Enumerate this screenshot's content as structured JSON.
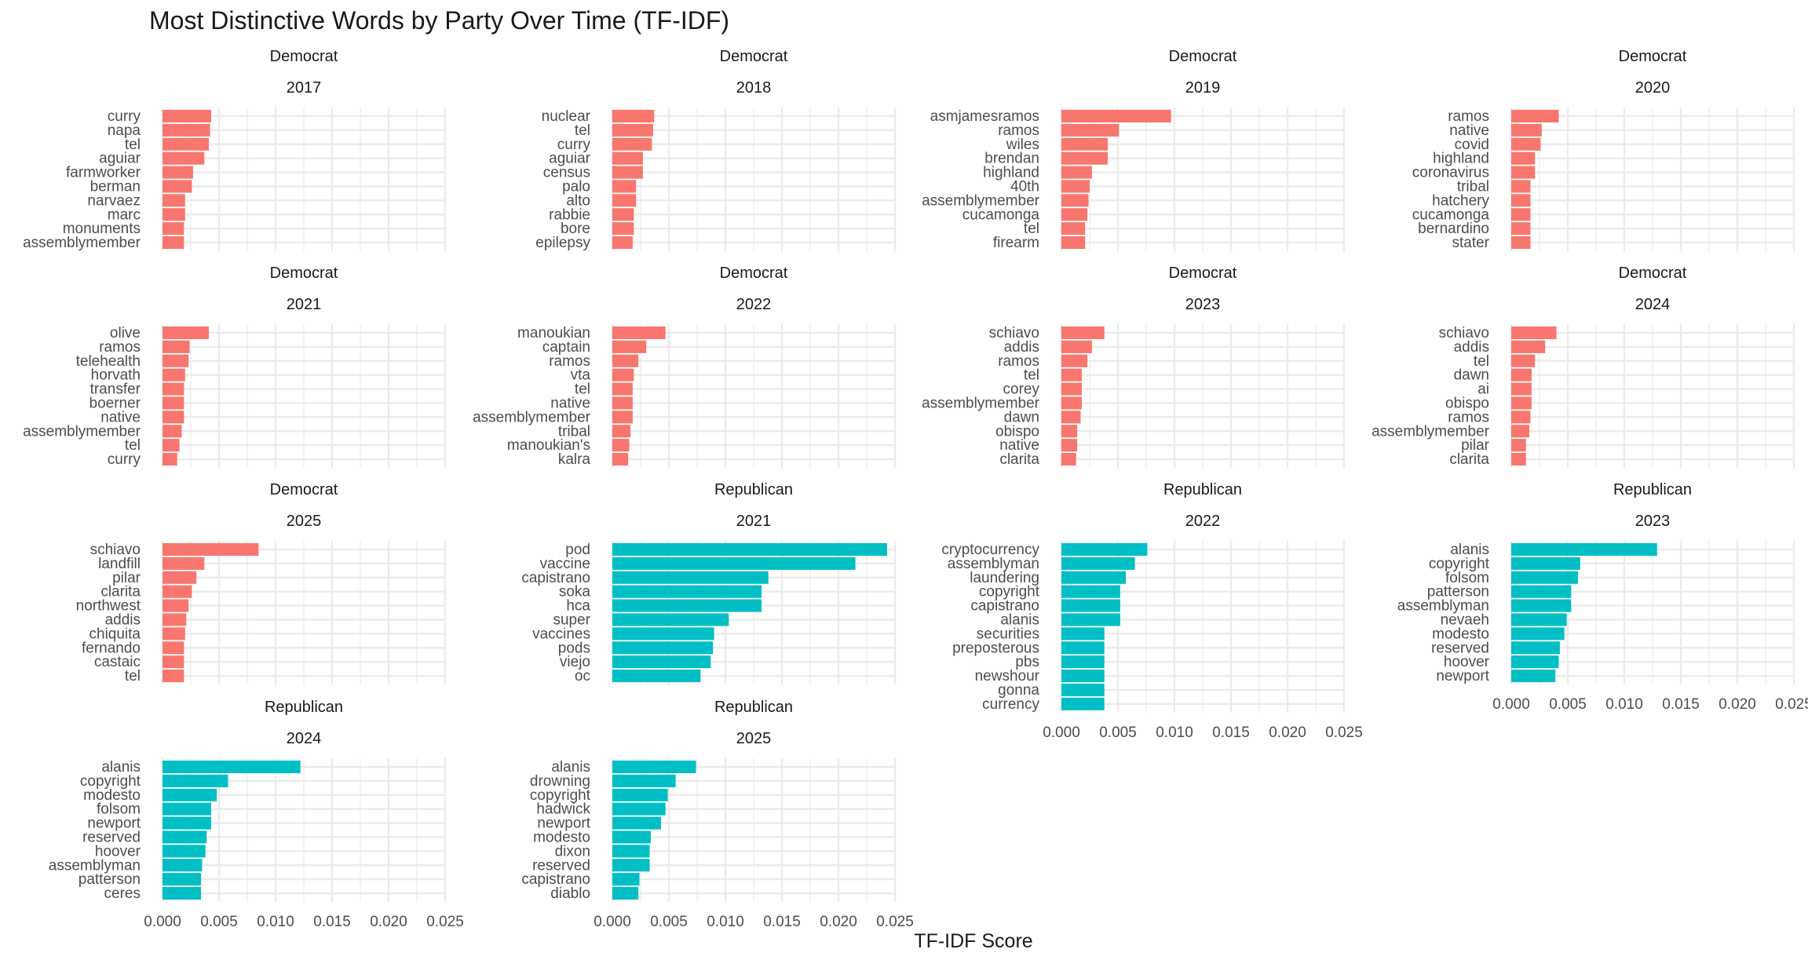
{
  "chart_data": {
    "type": "bar",
    "orientation": "horizontal",
    "title": "Most Distinctive Words by Party Over Time (TF-IDF)",
    "xlabel": "TF-IDF Score",
    "ylabel": "",
    "xlim": [
      0,
      0.025
    ],
    "x_ticks": [
      "0.000",
      "0.005",
      "0.010",
      "0.015",
      "0.020",
      "0.025"
    ],
    "grid": true,
    "colors": {
      "Democrat": "#F8766D",
      "Republican": "#00BFC4"
    },
    "panels": [
      {
        "party": "Democrat",
        "year": "2017",
        "words": [
          "curry",
          "napa",
          "tel",
          "aguiar",
          "farmworker",
          "berman",
          "narvaez",
          "marc",
          "monuments",
          "assemblymember"
        ],
        "values": [
          0.0043,
          0.0042,
          0.0041,
          0.0037,
          0.0027,
          0.0026,
          0.002,
          0.002,
          0.0019,
          0.0019
        ]
      },
      {
        "party": "Democrat",
        "year": "2018",
        "words": [
          "nuclear",
          "tel",
          "curry",
          "aguiar",
          "census",
          "palo",
          "alto",
          "rabbie",
          "bore",
          "epilepsy"
        ],
        "values": [
          0.0037,
          0.0036,
          0.0035,
          0.0027,
          0.0027,
          0.0021,
          0.0021,
          0.0019,
          0.0019,
          0.0018
        ]
      },
      {
        "party": "Democrat",
        "year": "2019",
        "words": [
          "asmjamesramos",
          "ramos",
          "wiles",
          "brendan",
          "highland",
          "40th",
          "assemblymember",
          "cucamonga",
          "tel",
          "firearm"
        ],
        "values": [
          0.0097,
          0.0051,
          0.0041,
          0.0041,
          0.0027,
          0.0025,
          0.0024,
          0.0023,
          0.0021,
          0.0021
        ]
      },
      {
        "party": "Democrat",
        "year": "2020",
        "words": [
          "ramos",
          "native",
          "covid",
          "highland",
          "coronavirus",
          "tribal",
          "hatchery",
          "cucamonga",
          "bernardino",
          "stater"
        ],
        "values": [
          0.0042,
          0.0027,
          0.0026,
          0.0021,
          0.0021,
          0.0017,
          0.0017,
          0.0017,
          0.0017,
          0.0017
        ]
      },
      {
        "party": "Democrat",
        "year": "2021",
        "words": [
          "olive",
          "ramos",
          "telehealth",
          "horvath",
          "transfer",
          "boerner",
          "native",
          "assemblymember",
          "tel",
          "curry"
        ],
        "values": [
          0.0041,
          0.0024,
          0.0023,
          0.002,
          0.0019,
          0.0019,
          0.0019,
          0.0017,
          0.0015,
          0.0013
        ]
      },
      {
        "party": "Democrat",
        "year": "2022",
        "words": [
          "manoukian",
          "captain",
          "ramos",
          "vta",
          "tel",
          "native",
          "assemblymember",
          "tribal",
          "manoukian's",
          "kalra"
        ],
        "values": [
          0.0047,
          0.003,
          0.0023,
          0.0019,
          0.0018,
          0.0018,
          0.0018,
          0.0016,
          0.0015,
          0.0014
        ]
      },
      {
        "party": "Democrat",
        "year": "2023",
        "words": [
          "schiavo",
          "addis",
          "ramos",
          "tel",
          "corey",
          "assemblymember",
          "dawn",
          "obispo",
          "native",
          "clarita"
        ],
        "values": [
          0.0038,
          0.0027,
          0.0023,
          0.0018,
          0.0018,
          0.0018,
          0.0017,
          0.0014,
          0.0014,
          0.0013
        ]
      },
      {
        "party": "Democrat",
        "year": "2024",
        "words": [
          "schiavo",
          "addis",
          "tel",
          "dawn",
          "ai",
          "obispo",
          "ramos",
          "assemblymember",
          "pilar",
          "clarita"
        ],
        "values": [
          0.004,
          0.003,
          0.0021,
          0.0018,
          0.0018,
          0.0018,
          0.0017,
          0.0016,
          0.0013,
          0.0013
        ]
      },
      {
        "party": "Democrat",
        "year": "2025",
        "words": [
          "schiavo",
          "landfill",
          "pilar",
          "clarita",
          "northwest",
          "addis",
          "chiquita",
          "fernando",
          "castaic",
          "tel"
        ],
        "values": [
          0.0085,
          0.0037,
          0.003,
          0.0026,
          0.0023,
          0.0021,
          0.002,
          0.0019,
          0.0019,
          0.0019
        ]
      },
      {
        "party": "Republican",
        "year": "2021",
        "words": [
          "pod",
          "vaccine",
          "capistrano",
          "soka",
          "hca",
          "super",
          "vaccines",
          "pods",
          "viejo",
          "oc"
        ],
        "values": [
          0.0243,
          0.0215,
          0.0138,
          0.0132,
          0.0132,
          0.0103,
          0.009,
          0.0089,
          0.0087,
          0.0078
        ]
      },
      {
        "party": "Republican",
        "year": "2022",
        "words": [
          "cryptocurrency",
          "assemblyman",
          "laundering",
          "copyright",
          "capistrano",
          "alanis",
          "securities",
          "preposterous",
          "pbs",
          "newshour",
          "gonna",
          "currency"
        ],
        "values": [
          0.0076,
          0.0065,
          0.0057,
          0.0052,
          0.0052,
          0.0052,
          0.0038,
          0.0038,
          0.0038,
          0.0038,
          0.0038,
          0.0038
        ]
      },
      {
        "party": "Republican",
        "year": "2023",
        "words": [
          "alanis",
          "copyright",
          "folsom",
          "patterson",
          "assemblyman",
          "nevaeh",
          "modesto",
          "reserved",
          "hoover",
          "newport"
        ],
        "values": [
          0.0129,
          0.0061,
          0.0059,
          0.0053,
          0.0053,
          0.0049,
          0.0047,
          0.0043,
          0.0042,
          0.0039
        ]
      },
      {
        "party": "Republican",
        "year": "2024",
        "words": [
          "alanis",
          "copyright",
          "modesto",
          "folsom",
          "newport",
          "reserved",
          "hoover",
          "assemblyman",
          "patterson",
          "ceres"
        ],
        "values": [
          0.0122,
          0.0058,
          0.0048,
          0.0043,
          0.0043,
          0.0039,
          0.0038,
          0.0035,
          0.0034,
          0.0034
        ]
      },
      {
        "party": "Republican",
        "year": "2025",
        "words": [
          "alanis",
          "drowning",
          "copyright",
          "hadwick",
          "newport",
          "modesto",
          "dixon",
          "reserved",
          "capistrano",
          "diablo"
        ],
        "values": [
          0.0074,
          0.0056,
          0.0049,
          0.0047,
          0.0043,
          0.0034,
          0.0033,
          0.0033,
          0.0024,
          0.0023
        ]
      }
    ]
  }
}
